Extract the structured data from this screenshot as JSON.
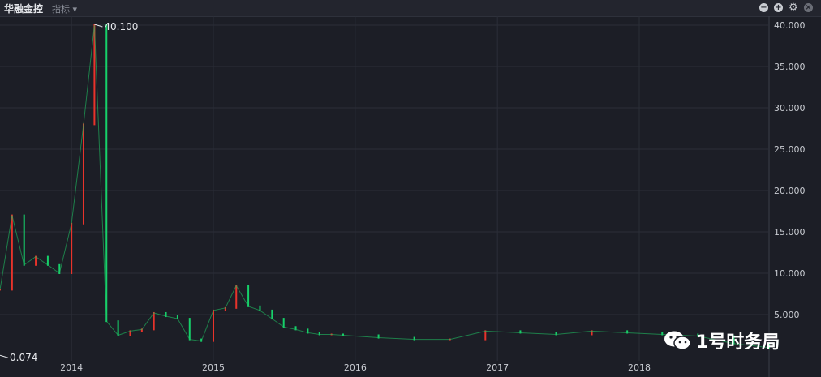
{
  "header": {
    "title": "华融金控",
    "indicator_label": "指标",
    "controls": [
      "minus-circle-icon",
      "plus-circle-icon",
      "gear-icon",
      "close-circle-icon"
    ]
  },
  "watermark": {
    "text": "1号时务局",
    "icon": "wechat-icon"
  },
  "colors": {
    "background": "#1c1e26",
    "up": "#e8332b",
    "down": "#16d16a",
    "grid": "#2b2e38",
    "axis_text": "#c9ccd2"
  },
  "chart_data": {
    "type": "candlestick",
    "title": "",
    "xlabel": "",
    "ylabel": "",
    "x_ticks": [
      "2014",
      "2015",
      "2016",
      "2017",
      "2018"
    ],
    "y_ticks": [
      "40.000",
      "35.000",
      "30.000",
      "25.000",
      "20.000",
      "15.000",
      "10.000",
      "5.000"
    ],
    "ylim": [
      0,
      40.1
    ],
    "xlim": [
      "2013-07",
      "2018-12"
    ],
    "grid": true,
    "annotations": [
      {
        "label": "40.100",
        "x": "2014-03",
        "y": 40.1
      },
      {
        "label": "0.074",
        "x": "2013-07",
        "y": 0.074
      }
    ],
    "series": [
      {
        "x": [
          "2013-07",
          "2013-08",
          "2013-09",
          "2013-10",
          "2013-11",
          "2013-12",
          "2014-01",
          "2014-02",
          "2014-03",
          "2014-04",
          "2014-05",
          "2014-06",
          "2014-07",
          "2014-08",
          "2014-09",
          "2014-10",
          "2014-11",
          "2014-12",
          "2015-01",
          "2015-02",
          "2015-03",
          "2015-04",
          "2015-05",
          "2015-06",
          "2015-07",
          "2015-08",
          "2015-09",
          "2015-10",
          "2015-11",
          "2015-12",
          "2016-03",
          "2016-06",
          "2016-09",
          "2016-12",
          "2017-03",
          "2017-06",
          "2017-09",
          "2017-12",
          "2018-03",
          "2018-06",
          "2018-09",
          "2018-12"
        ],
        "values": [
          8,
          17,
          11,
          12,
          11,
          10,
          16,
          28,
          40,
          4.2,
          2.5,
          3.0,
          3.2,
          5.2,
          4.8,
          4.5,
          2.0,
          1.8,
          5.5,
          5.8,
          8.5,
          6.0,
          5.5,
          4.5,
          3.5,
          3.2,
          2.8,
          2.6,
          2.6,
          2.5,
          2.2,
          2.0,
          2.0,
          3.0,
          2.8,
          2.6,
          3.0,
          2.8,
          2.6,
          2.4,
          1.5,
          1.0
        ]
      }
    ]
  }
}
